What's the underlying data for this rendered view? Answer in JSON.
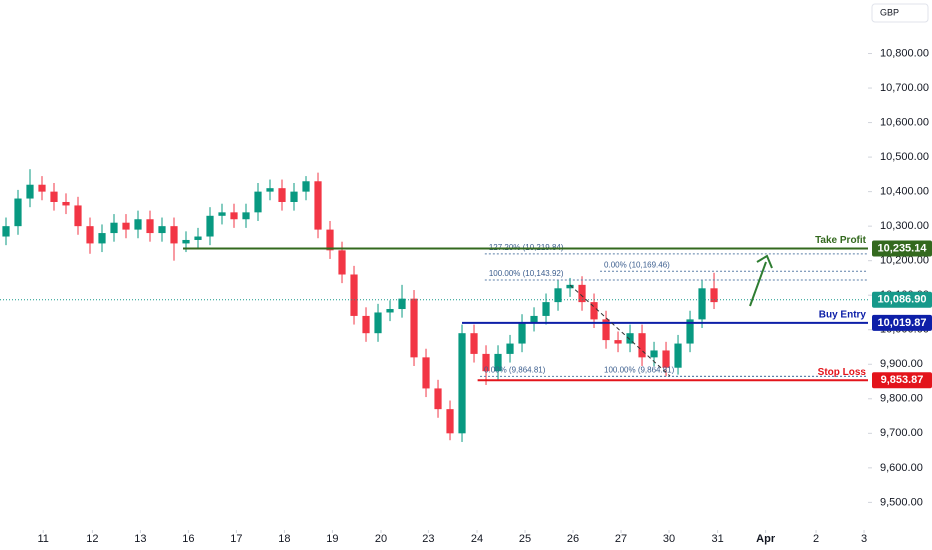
{
  "chart_data": {
    "type": "candlestick",
    "currency": "GBP",
    "up_color": "#089981",
    "down_color": "#f23645",
    "x": [
      0.5,
      1.5,
      2.5,
      3.5,
      4.5,
      5.5,
      6.5,
      7.5,
      8.5,
      9.5,
      10.5,
      11.5,
      12.5,
      13.5,
      14.5,
      15.5,
      16.5,
      17.5,
      18.5,
      19.5,
      20.5,
      21.5,
      22.5,
      23.5,
      24.5,
      25.5,
      26.5,
      27.5,
      28.5,
      29.5,
      30.5,
      31.5,
      32.5,
      33.5,
      34.5,
      35.5,
      36.5,
      37.5,
      38.5,
      39.5,
      40.5,
      41.5,
      42.5,
      43.5,
      44.5,
      45.5,
      46.5,
      47.5,
      48.5,
      49.5,
      50.5,
      51.5,
      52.5,
      53.5,
      54.5,
      55.5,
      56.5,
      57.5,
      58.5,
      59.5
    ],
    "open": [
      10270,
      10300,
      10380,
      10420,
      10400,
      10370,
      10360,
      10300,
      10250,
      10280,
      10310,
      10290,
      10320,
      10280,
      10300,
      10250,
      10260,
      10270,
      10330,
      10340,
      10320,
      10340,
      10400,
      10410,
      10370,
      10400,
      10430,
      10290,
      10230,
      10160,
      10040,
      9990,
      10050,
      10060,
      10090,
      9920,
      9830,
      9770,
      9700,
      9990,
      9930,
      9880,
      9930,
      9960,
      10020,
      10040,
      10080,
      10120,
      10130,
      10080,
      10030,
      9970,
      9960,
      9990,
      9920,
      9940,
      9890,
      9960,
      10030,
      10120
    ],
    "high": [
      10325,
      10405,
      10465,
      10445,
      10425,
      10395,
      10385,
      10325,
      10305,
      10335,
      10335,
      10345,
      10345,
      10325,
      10325,
      10285,
      10295,
      10355,
      10365,
      10365,
      10365,
      10425,
      10435,
      10435,
      10425,
      10445,
      10455,
      10315,
      10255,
      10185,
      10065,
      10075,
      10085,
      10130,
      10115,
      9945,
      9855,
      9795,
      10015,
      10015,
      9955,
      9955,
      9985,
      10045,
      10065,
      10105,
      10145,
      10150,
      10155,
      10105,
      10055,
      9995,
      10015,
      10015,
      9965,
      9965,
      9985,
      10055,
      10145,
      10165
    ],
    "low": [
      10245,
      10275,
      10355,
      10375,
      10345,
      10335,
      10275,
      10220,
      10225,
      10255,
      10265,
      10265,
      10255,
      10255,
      10200,
      10225,
      10235,
      10245,
      10305,
      10295,
      10295,
      10315,
      10375,
      10345,
      10345,
      10375,
      10265,
      10205,
      10135,
      10015,
      9965,
      9965,
      10025,
      10035,
      9895,
      9805,
      9745,
      9680,
      9675,
      9905,
      9840,
      9855,
      9905,
      9935,
      9995,
      10015,
      10055,
      10095,
      10055,
      10005,
      9945,
      9935,
      9935,
      9895,
      9895,
      9865,
      9870,
      9935,
      10005,
      10060
    ],
    "close": [
      10300,
      10380,
      10420,
      10400,
      10370,
      10360,
      10300,
      10250,
      10280,
      10310,
      10290,
      10320,
      10280,
      10300,
      10250,
      10260,
      10270,
      10330,
      10340,
      10320,
      10340,
      10400,
      10410,
      10370,
      10400,
      10430,
      10290,
      10230,
      10160,
      10040,
      9990,
      10050,
      10060,
      10090,
      9920,
      9830,
      9770,
      9700,
      9990,
      9930,
      9880,
      9930,
      9960,
      10020,
      10040,
      10080,
      10120,
      10130,
      10080,
      10030,
      9970,
      9960,
      9990,
      9920,
      9940,
      9890,
      9960,
      10030,
      10120,
      10080
    ],
    "xlim": [
      0,
      72.33
    ],
    "xticks": [
      {
        "value": 3.6,
        "label": "11"
      },
      {
        "value": 7.7,
        "label": "12"
      },
      {
        "value": 11.7,
        "label": "13"
      },
      {
        "value": 15.7,
        "label": "16"
      },
      {
        "value": 19.7,
        "label": "17"
      },
      {
        "value": 23.7,
        "label": "18"
      },
      {
        "value": 27.7,
        "label": "19"
      },
      {
        "value": 31.75,
        "label": "20"
      },
      {
        "value": 35.7,
        "label": "23"
      },
      {
        "value": 39.75,
        "label": "24"
      },
      {
        "value": 43.75,
        "label": "25"
      },
      {
        "value": 47.75,
        "label": "26"
      },
      {
        "value": 51.75,
        "label": "27"
      },
      {
        "value": 55.75,
        "label": "30"
      },
      {
        "value": 59.8,
        "label": "31"
      },
      {
        "value": 63.8,
        "label": "Apr"
      },
      {
        "value": 68,
        "label": "2"
      },
      {
        "value": 72,
        "label": "3"
      }
    ],
    "ylim": [
      9420,
      10955
    ],
    "yticks": [
      {
        "value": 9500,
        "label": "9,500.00"
      },
      {
        "value": 9600,
        "label": "9,600.00"
      },
      {
        "value": 9700,
        "label": "9,700.00"
      },
      {
        "value": 9800,
        "label": "9,800.00"
      },
      {
        "value": 9900,
        "label": "9,900.00"
      },
      {
        "value": 10000,
        "label": "10,000.00"
      },
      {
        "value": 10100,
        "label": "10,100.00"
      },
      {
        "value": 10200,
        "label": "10,200.00"
      },
      {
        "value": 10300,
        "label": "10,300.00"
      },
      {
        "value": 10400,
        "label": "10,400.00"
      },
      {
        "value": 10500,
        "label": "10,500.00"
      },
      {
        "value": 10600,
        "label": "10,600.00"
      },
      {
        "value": 10700,
        "label": "10,700.00"
      },
      {
        "value": 10800,
        "label": "10,800.00"
      }
    ],
    "levels": [
      {
        "name": "Take Profit",
        "value": 10235.14,
        "value_label": "10,235.14",
        "color": "#33691e",
        "from": 15.25
      },
      {
        "name": "Buy Entry",
        "value": 10019.87,
        "value_label": "10,019.87",
        "color": "#0d1fa8",
        "from": 38.5
      },
      {
        "name": "Stop Loss",
        "value": 9853.87,
        "value_label": "9,853.87",
        "color": "#e3141b",
        "from": 39.8
      }
    ],
    "last_price": {
      "value": 10086.9,
      "value_label": "10,086.90",
      "color": "#16998a"
    },
    "fib_levels": [
      {
        "text": "127.20% (10,219.84)",
        "value": 10219.84,
        "from": 40.4
      },
      {
        "text": "100.00% (10,143.92)",
        "value": 10143.92,
        "from": 40.4
      },
      {
        "text": "0.00% (10,169.46)",
        "value": 10169.46,
        "from": 50.0
      },
      {
        "text": "0.00% (9,864.81)",
        "value": 9864.81,
        "from": 40.0
      },
      {
        "text": "100.00% (9,864.81)",
        "value": 9864.81,
        "from": 50.0
      }
    ]
  }
}
